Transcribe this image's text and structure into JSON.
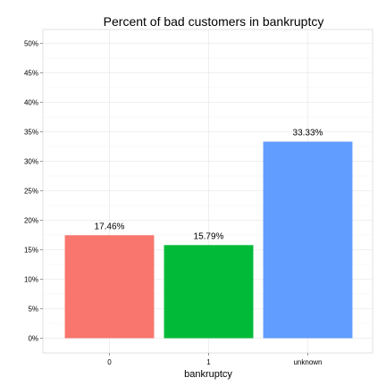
{
  "chart_data": {
    "type": "bar",
    "title": "Percent of bad customers in bankruptcy",
    "xlabel": "bankruptcy",
    "ylabel": "",
    "categories": [
      "0",
      "1",
      "unknown"
    ],
    "values": [
      17.46,
      15.79,
      33.33
    ],
    "data_labels": [
      "17.46%",
      "15.79%",
      "33.33%"
    ],
    "bar_colors": [
      "#F8766D",
      "#00BA38",
      "#619CFF"
    ],
    "ylim": [
      0,
      50
    ],
    "y_ticks": [
      0,
      5,
      10,
      15,
      20,
      25,
      30,
      35,
      40,
      45,
      50
    ],
    "y_tick_labels": [
      "0%",
      "5%",
      "10%",
      "15%",
      "20%",
      "25%",
      "30%",
      "35%",
      "40%",
      "45%",
      "50%"
    ],
    "grid": true,
    "legend": "none"
  }
}
